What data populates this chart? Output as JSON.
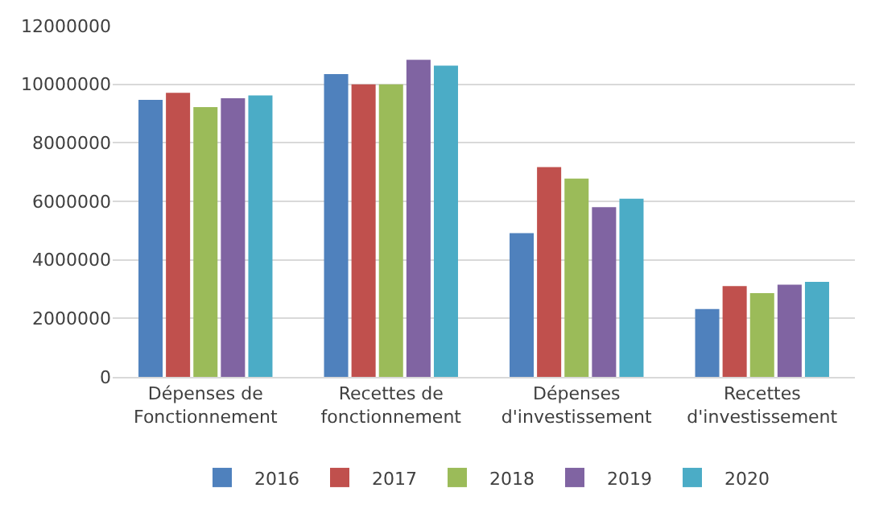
{
  "chart_data": {
    "type": "bar",
    "categories": [
      "Dépenses de\nFonctionnement",
      "Recettes de\nfonctionnement",
      "Dépenses\nd'investissement",
      "Recettes\nd'investissement"
    ],
    "series": [
      {
        "name": "2016",
        "color": "#4f81bd",
        "values": [
          9470000,
          10350000,
          4910000,
          2320000
        ]
      },
      {
        "name": "2017",
        "color": "#c0504d",
        "values": [
          9710000,
          10000000,
          7170000,
          3100000
        ]
      },
      {
        "name": "2018",
        "color": "#9bbb59",
        "values": [
          9220000,
          10000000,
          6780000,
          2860000
        ]
      },
      {
        "name": "2019",
        "color": "#8064a2",
        "values": [
          9520000,
          10840000,
          5800000,
          3150000
        ]
      },
      {
        "name": "2020",
        "color": "#4bacc6",
        "values": [
          9620000,
          10640000,
          6090000,
          3250000
        ]
      }
    ],
    "ylim": [
      0,
      12000000
    ],
    "yticks": [
      0,
      2000000,
      4000000,
      6000000,
      8000000,
      10000000,
      12000000
    ],
    "grid": "y",
    "legend": "bottom"
  }
}
